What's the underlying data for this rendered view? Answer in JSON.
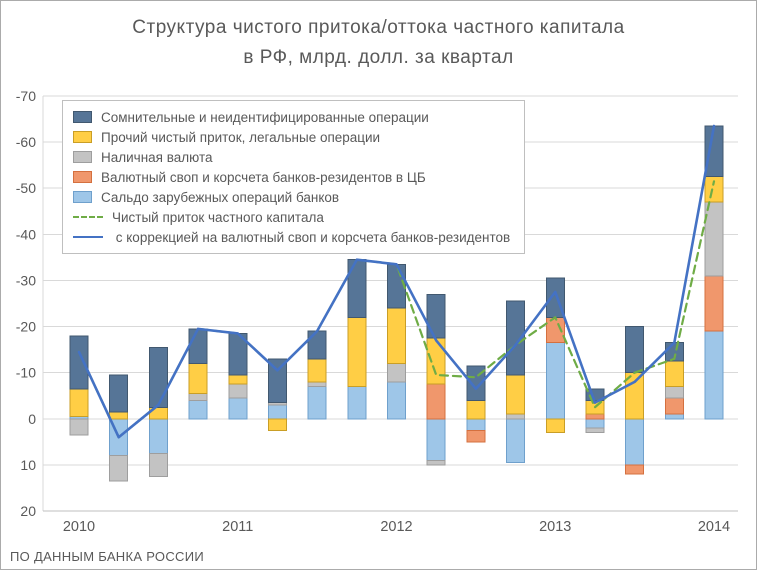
{
  "title": {
    "line1": "Структура чистого притока/оттока частного капитала",
    "line2": "в РФ, млрд. долл. за квартал"
  },
  "footer": "ПО ДАННЫМ БАНКА РОССИИ",
  "chart_data": {
    "type": "bar",
    "subtype": "stacked-bars-with-lines",
    "title": "Структура чистого притока/оттока частного капитала в РФ, млрд. долл. за квартал",
    "inverted_y_axis": true,
    "ylim": [
      -70,
      20
    ],
    "yticks": [
      -70,
      -60,
      -50,
      -40,
      -30,
      -20,
      -10,
      0,
      10,
      20
    ],
    "x_year_labels": [
      "2010",
      "2011",
      "2012",
      "2013",
      "2014"
    ],
    "grid": "horizontal",
    "legend_position": "top-left-inside",
    "categories": [
      "2010 Q1",
      "2010 Q2",
      "2010 Q3",
      "2010 Q4",
      "2011 Q1",
      "2011 Q2",
      "2011 Q3",
      "2011 Q4",
      "2012 Q1",
      "2012 Q2",
      "2012 Q3",
      "2012 Q4",
      "2013 Q1",
      "2013 Q2",
      "2013 Q3",
      "2013 Q4",
      "2014 Q1"
    ],
    "series": [
      {
        "key": "doubtful",
        "label": "Сомнительные и неидентифицированные операции",
        "type": "bar",
        "color": "#567597",
        "border": "#41586F",
        "values": [
          -11.5,
          -8,
          -13,
          -7.5,
          -9,
          -9.5,
          -6,
          -12.5,
          -9.5,
          -9.5,
          -7.5,
          -16,
          -8.5,
          -2.5,
          -10,
          -4,
          -11
        ]
      },
      {
        "key": "other",
        "label": "Прочий чистый приток, легальные операции",
        "type": "bar",
        "color": "#FFCE45",
        "border": "#C99E26",
        "values": [
          -6,
          -1.5,
          -2.5,
          -6.5,
          -2,
          2.5,
          -5,
          -15,
          -12,
          -10,
          -4,
          -8.5,
          3,
          -3,
          -10,
          -5.5,
          -5.5
        ]
      },
      {
        "key": "cash",
        "label": "Наличная валюта",
        "type": "bar",
        "color": "#C3C3C3",
        "border": "#9E9E9E",
        "values": [
          3.5,
          5.5,
          5,
          -1.5,
          -3,
          -0.5,
          -1,
          0,
          -4,
          1,
          0,
          -1,
          0,
          1,
          0,
          -2.5,
          -16
        ]
      },
      {
        "key": "swap",
        "label": "Валютный своп и корсчета банков-резидентов в ЦБ",
        "type": "bar",
        "color": "#F0976C",
        "border": "#D4703F",
        "values": [
          0,
          0,
          0,
          0,
          0,
          0,
          0,
          0,
          0,
          -7.5,
          2.5,
          0,
          -5.5,
          -1,
          2,
          -3.5,
          -12
        ]
      },
      {
        "key": "banks",
        "label": "Сальдо зарубежных операций банков",
        "type": "bar",
        "color": "#9EC6E8",
        "border": "#6FA0CC",
        "values": [
          -0.5,
          8,
          7.5,
          -4,
          -4.5,
          -3,
          -7,
          -7,
          -8,
          9,
          2.5,
          9.5,
          -16.5,
          2,
          10,
          -1,
          -19
        ]
      },
      {
        "key": "net",
        "label": "Чистый приток частного капитала",
        "type": "line",
        "dash": true,
        "color": "#6FAC46",
        "values": [
          -14.5,
          4,
          -3,
          -19.5,
          -18.5,
          -10.5,
          -19,
          -34.5,
          -33.5,
          -9.5,
          -9,
          -16,
          -22,
          -2.5,
          -10,
          -13,
          -51.5
        ]
      },
      {
        "key": "corrected",
        "label": " с коррекцией на валютный своп и корсчета банков-резидентов",
        "type": "line",
        "dash": false,
        "color": "#4472C4",
        "values": [
          -14.5,
          4,
          -3,
          -19.5,
          -18.5,
          -10.5,
          -19,
          -34.5,
          -33.5,
          -17,
          -6.5,
          -16,
          -27.5,
          -3.5,
          -8,
          -16.5,
          -63.5
        ]
      }
    ]
  }
}
